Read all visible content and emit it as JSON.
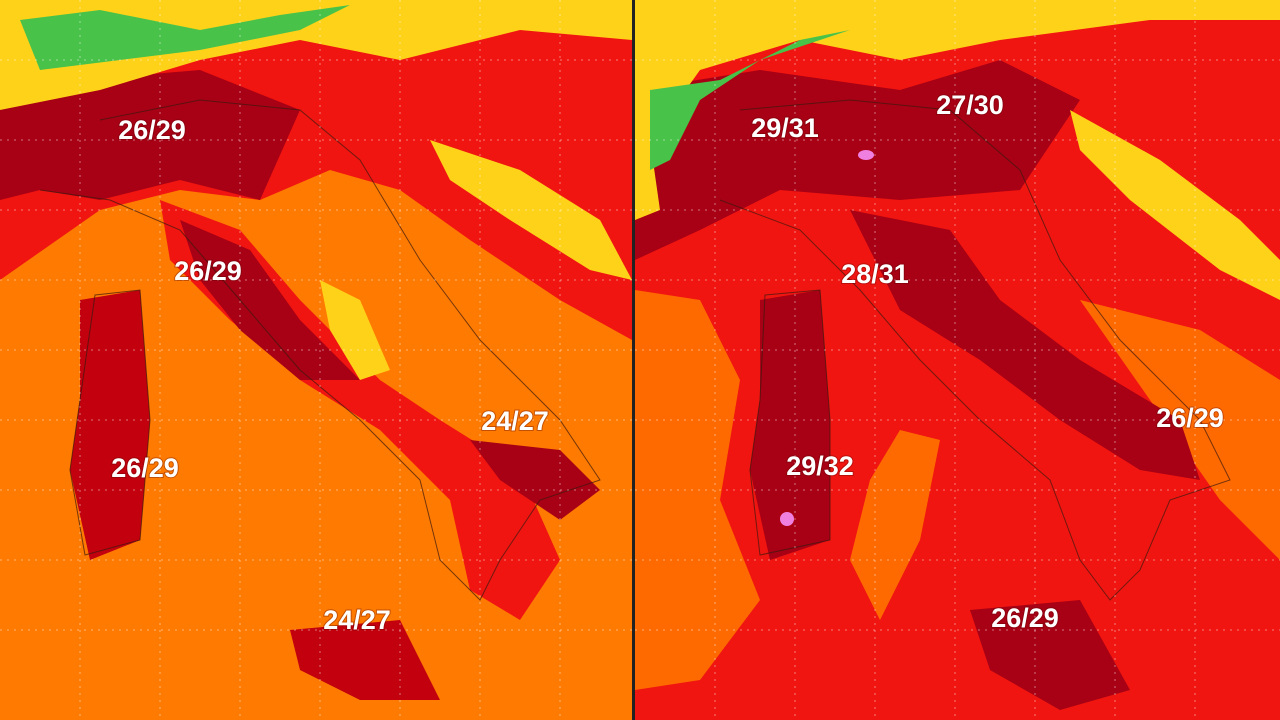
{
  "panels": [
    {
      "labels": [
        "26/29",
        "26/29",
        "26/29",
        "24/27",
        "24/27"
      ]
    },
    {
      "labels": [
        "29/31",
        "27/30",
        "28/31",
        "29/32",
        "26/29",
        "26/29"
      ]
    }
  ]
}
